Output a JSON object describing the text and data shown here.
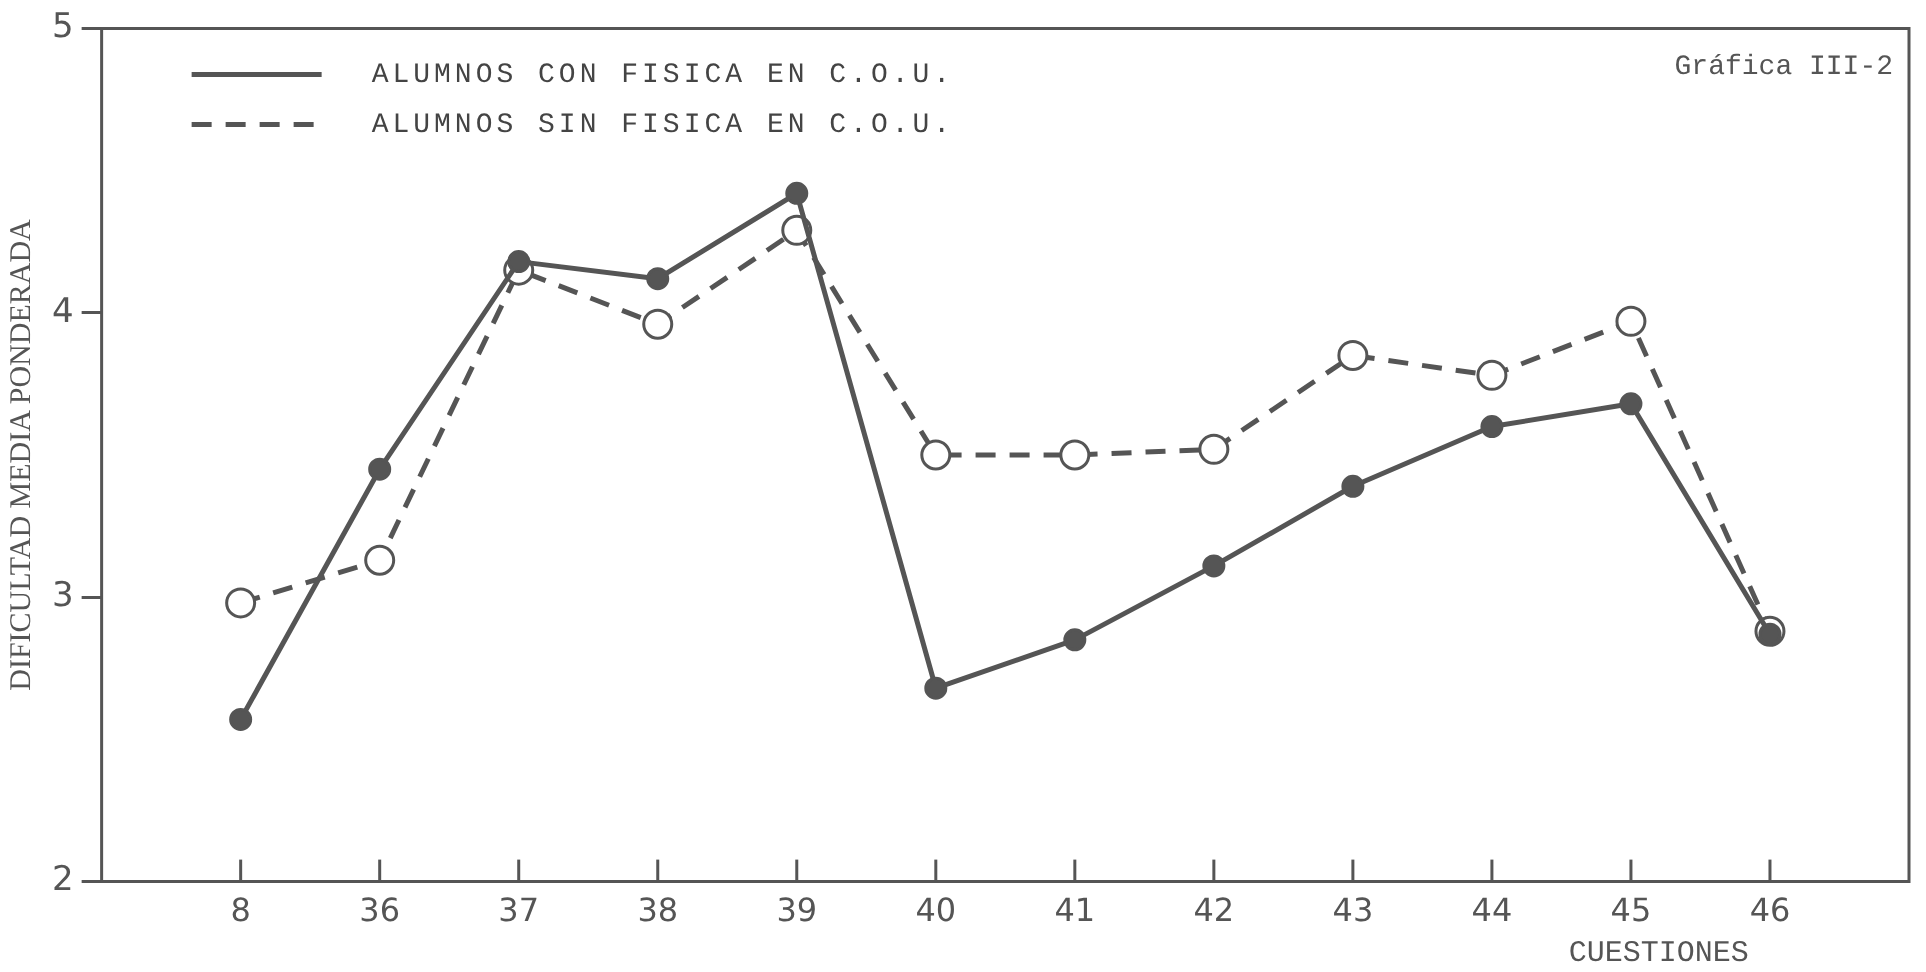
{
  "chart_data": {
    "type": "line",
    "ylabel": "DIFICULTAD MEDIA PONDERADA",
    "xlabel": "CUESTIONES",
    "annotations": [
      "Gráfica III-2"
    ],
    "categories": [
      "8",
      "36",
      "37",
      "38",
      "39",
      "40",
      "41",
      "42",
      "43",
      "44",
      "45",
      "46"
    ],
    "ylim": [
      2,
      5
    ],
    "yticks": [
      2,
      3,
      4,
      5
    ],
    "grid": false,
    "legend": "top left",
    "marker": "circle",
    "series": [
      {
        "name": "ALUMNOS CON FISICA EN C.O.U.",
        "color": "#555555",
        "line_style": "solid",
        "values": [
          2.57,
          3.45,
          4.18,
          4.12,
          4.42,
          2.68,
          2.85,
          3.11,
          3.39,
          3.6,
          3.68,
          2.87
        ]
      },
      {
        "name": "ALUMNOS SIN FISICA EN C.O.U.",
        "color": "#555555",
        "line_style": "dashed",
        "values": [
          2.98,
          3.13,
          4.15,
          3.96,
          4.29,
          3.5,
          3.5,
          3.52,
          3.85,
          3.78,
          3.97,
          2.88
        ]
      }
    ]
  }
}
